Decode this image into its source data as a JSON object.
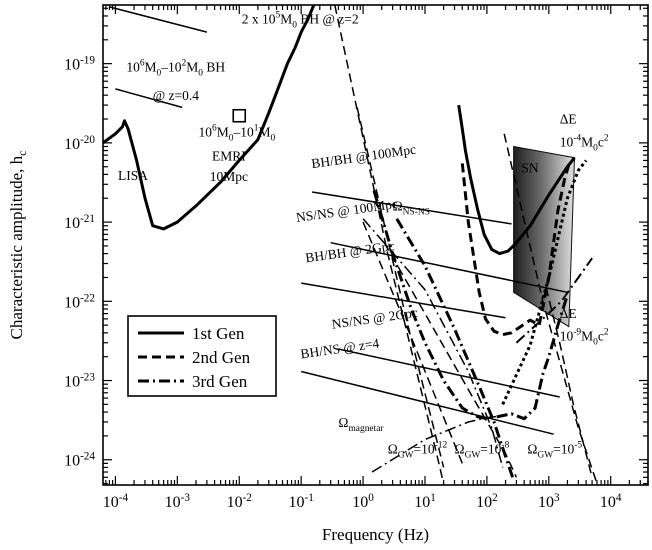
{
  "chart_data": {
    "type": "line",
    "xlabel": "Frequency (Hz)",
    "ylabel": "Characteristic amplitude, h",
    "ylabel_sub": "c",
    "x_scale": "log",
    "y_scale": "log",
    "xlim": [
      6.3e-05,
      40000.0
    ],
    "ylim": [
      4.8e-25,
      5.5e-19
    ],
    "x_ticks": [
      {
        "v": 0.0001,
        "base": "10",
        "exp": "-4"
      },
      {
        "v": 0.001,
        "base": "10",
        "exp": "-3"
      },
      {
        "v": 0.01,
        "base": "10",
        "exp": "-2"
      },
      {
        "v": 0.1,
        "base": "10",
        "exp": "-1"
      },
      {
        "v": 1,
        "base": "10",
        "exp": "0"
      },
      {
        "v": 10,
        "base": "10",
        "exp": "1"
      },
      {
        "v": 100,
        "base": "10",
        "exp": "2"
      },
      {
        "v": 1000,
        "base": "10",
        "exp": "3"
      },
      {
        "v": 10000,
        "base": "10",
        "exp": "4"
      }
    ],
    "y_ticks": [
      {
        "v": 1e-19,
        "base": "10",
        "exp": "-19"
      },
      {
        "v": 1e-20,
        "base": "10",
        "exp": "-20"
      },
      {
        "v": 1e-21,
        "base": "10",
        "exp": "-21"
      },
      {
        "v": 1e-22,
        "base": "10",
        "exp": "-22"
      },
      {
        "v": 1e-23,
        "base": "10",
        "exp": "-23"
      },
      {
        "v": 1e-24,
        "base": "10",
        "exp": "-24"
      }
    ],
    "legend": {
      "placement": "lower-left",
      "entries": [
        {
          "label": "1st Gen",
          "style": "solid"
        },
        {
          "label": "2nd Gen",
          "style": "dashed"
        },
        {
          "label": "3rd Gen",
          "style": "dashdot"
        }
      ]
    },
    "series": [
      {
        "key": "lisa",
        "style": "solid",
        "width": 3,
        "points": [
          [
            6.3e-05,
            1e-20
          ],
          [
            0.0001,
            1.3e-20
          ],
          [
            0.00013,
            1.6e-20
          ],
          [
            0.00014,
            1.9e-20
          ],
          [
            0.00016,
            1.5e-20
          ],
          [
            0.00022,
            6e-21
          ],
          [
            0.0003,
            2e-21
          ],
          [
            0.0004,
            9e-22
          ],
          [
            0.0006,
            8.2e-22
          ],
          [
            0.001,
            1e-21
          ],
          [
            0.002,
            1.6e-21
          ],
          [
            0.005,
            3.2e-21
          ],
          [
            0.01,
            6e-21
          ],
          [
            0.02,
            1.1e-20
          ],
          [
            0.03,
            2.4e-20
          ],
          [
            0.045,
            5.5e-20
          ],
          [
            0.06,
            1e-19
          ],
          [
            0.08,
            1.6e-19
          ],
          [
            0.1,
            2.5e-19
          ],
          [
            0.13,
            3.7e-19
          ],
          [
            0.16,
            5.5e-19
          ]
        ]
      },
      {
        "key": "ligo1",
        "style": "solid",
        "width": 3,
        "points": [
          [
            35,
            3e-20
          ],
          [
            40,
            1.5e-20
          ],
          [
            45,
            8e-21
          ],
          [
            55,
            3.5e-21
          ],
          [
            70,
            1.5e-21
          ],
          [
            90,
            7e-22
          ],
          [
            120,
            4.5e-22
          ],
          [
            160,
            4e-22
          ],
          [
            220,
            4.3e-22
          ],
          [
            300,
            5.5e-22
          ],
          [
            500,
            9e-22
          ],
          [
            1000,
            2.2e-21
          ],
          [
            2000,
            5e-21
          ],
          [
            2600,
            6.5e-21
          ]
        ]
      },
      {
        "key": "ligo2",
        "style": "dashed",
        "width": 3,
        "points": [
          [
            40,
            5.5e-21
          ],
          [
            50,
            1e-21
          ],
          [
            60,
            4e-22
          ],
          [
            75,
            1.3e-22
          ],
          [
            95,
            6e-23
          ],
          [
            130,
            4.2e-23
          ],
          [
            180,
            3.8e-23
          ],
          [
            250,
            4e-23
          ],
          [
            350,
            4.8e-23
          ],
          [
            500,
            5.8e-23
          ],
          [
            700,
            5e-23
          ],
          [
            1000,
            2e-22
          ],
          [
            1400,
            1.4e-21
          ],
          [
            1800,
            3.5e-21
          ],
          [
            2200,
            6e-21
          ]
        ]
      },
      {
        "key": "ligo3",
        "style": "dashdot",
        "width": 3,
        "points": [
          [
            1.5,
            2.5e-21
          ],
          [
            3,
            4e-22
          ],
          [
            6,
            8e-23
          ],
          [
            10,
            3e-23
          ],
          [
            20,
            1e-23
          ],
          [
            40,
            4.5e-24
          ],
          [
            70,
            3.5e-24
          ],
          [
            100,
            3.3e-24
          ],
          [
            150,
            3.5e-24
          ],
          [
            250,
            3.8e-24
          ],
          [
            400,
            3.3e-24
          ],
          [
            600,
            4.5e-24
          ],
          [
            800,
            1.2e-23
          ],
          [
            1000,
            2e-23
          ],
          [
            1400,
            5e-23
          ],
          [
            2000,
            1.2e-22
          ]
        ]
      },
      {
        "key": "smbh_z2",
        "style": "solid",
        "width": 1.5,
        "points": [
          [
            8e-05,
            5.2e-19
          ],
          [
            0.003,
            2.5e-19
          ]
        ]
      },
      {
        "key": "smbh_z04",
        "style": "solid",
        "width": 1.5,
        "points": [
          [
            0.0001,
            4.8e-20
          ],
          [
            0.0012,
            2.8e-20
          ]
        ]
      },
      {
        "key": "bhbh_100mpc",
        "style": "solid",
        "width": 1.5,
        "points": [
          [
            0.15,
            2.4e-21
          ],
          [
            250,
            9.5e-22
          ]
        ]
      },
      {
        "key": "nsns_100mpc",
        "style": "solid",
        "width": 1.5,
        "points": [
          [
            0.3,
            5.5e-22
          ],
          [
            2000,
            1.3e-22
          ]
        ]
      },
      {
        "key": "bhbh_2gpc",
        "style": "solid",
        "width": 1.5,
        "points": [
          [
            0.1,
            1.7e-22
          ],
          [
            200,
            6.2e-23
          ]
        ]
      },
      {
        "key": "nsns_2gpc",
        "style": "solid",
        "width": 1.5,
        "points": [
          [
            0.4,
            2.5e-23
          ],
          [
            1500,
            6.2e-24
          ]
        ]
      },
      {
        "key": "bhns_z4",
        "style": "solid",
        "width": 1.5,
        "points": [
          [
            0.1,
            1.3e-23
          ],
          [
            1200,
            2.1e-24
          ]
        ]
      },
      {
        "key": "omega_nsns",
        "style": "dashdot",
        "width": 3,
        "points": [
          [
            3.5,
            1.1e-21
          ],
          [
            10,
            2.8e-22
          ],
          [
            30,
            4.5e-23
          ],
          [
            80,
            7.5e-24
          ],
          [
            130,
            3e-24
          ],
          [
            260,
            6e-25
          ]
        ]
      },
      {
        "key": "omega_magnetar",
        "style": "dashdot",
        "width": 1.5,
        "points": [
          [
            1,
            1.1e-21
          ],
          [
            10,
            1.4e-22
          ],
          [
            50,
            1.3e-23
          ],
          [
            120,
            2.5e-24
          ],
          [
            180,
            8e-25
          ]
        ]
      },
      {
        "key": "omega_gw_1e-12",
        "style": "dashdot",
        "width": 1.5,
        "points": [
          [
            1.4,
            7e-25
          ],
          [
            10,
            1.8e-24
          ],
          [
            50,
            3e-24
          ],
          [
            100,
            3.4e-24
          ],
          [
            200,
            3.6e-24
          ]
        ]
      },
      {
        "key": "dash_far_1",
        "style": "dashed",
        "width": 1.5,
        "points": [
          [
            0.35,
            5.5e-19
          ],
          [
            2.5,
            4e-22
          ],
          [
            15,
            1.3e-24
          ],
          [
            20,
            5e-25
          ]
        ]
      },
      {
        "key": "dash_far_2",
        "style": "dashed",
        "width": 1.5,
        "points": [
          [
            0.8,
            2.8e-20
          ],
          [
            5,
            6e-23
          ],
          [
            20,
            8e-25
          ]
        ]
      },
      {
        "key": "dash_far_3",
        "style": "dashed",
        "width": 1.5,
        "points": [
          [
            1.0,
            1e-21
          ],
          [
            6,
            3.5e-23
          ],
          [
            40,
            9e-25
          ]
        ]
      },
      {
        "key": "dash_mid",
        "style": "dashed",
        "width": 1.5,
        "points": [
          [
            2.2,
            5.5e-22
          ],
          [
            10,
            7e-23
          ],
          [
            60,
            6e-24
          ],
          [
            200,
            1.2e-24
          ],
          [
            300,
            6e-25
          ]
        ]
      },
      {
        "key": "dash_right",
        "style": "dashed",
        "width": 1.5,
        "points": [
          [
            190,
            1.3e-20
          ],
          [
            800,
            1e-22
          ],
          [
            3000,
            2.5e-24
          ],
          [
            6000,
            5e-25
          ]
        ]
      },
      {
        "key": "delta_e_1e-4",
        "style": "dotted",
        "width": 3,
        "points": [
          [
            180,
            5e-24
          ],
          [
            500,
            2.8e-23
          ],
          [
            1000,
            2e-22
          ],
          [
            2000,
            2e-21
          ],
          [
            3000,
            4.5e-21
          ],
          [
            4000,
            6e-21
          ]
        ]
      },
      {
        "key": "delta_e_1e-9",
        "style": "dashdot",
        "width": 2,
        "points": [
          [
            300,
            3e-23
          ],
          [
            800,
            6e-23
          ],
          [
            1600,
            1e-22
          ],
          [
            3000,
            2e-22
          ],
          [
            5000,
            3.5e-22
          ]
        ]
      },
      {
        "key": "delta_e_1e-9_dash",
        "style": "dashed",
        "width": 1.5,
        "points": [
          [
            900,
            1.5e-22
          ],
          [
            1500,
            3e-23
          ],
          [
            2500,
            5e-24
          ],
          [
            5000,
            6e-25
          ]
        ]
      }
    ],
    "regions": [
      {
        "key": "sn",
        "label": "SN",
        "polygon": [
          [
            270,
            9e-21
          ],
          [
            2600,
            6.5e-21
          ],
          [
            2100,
            4.8e-23
          ],
          [
            270,
            1.3e-22
          ]
        ]
      }
    ],
    "markers": [
      {
        "key": "emri_box",
        "shape": "square",
        "x": 0.01,
        "y": 2.2e-20
      }
    ],
    "annotations": [
      {
        "key": "lbl_smbh_z2",
        "parts": [
          {
            "t": "2 x 10"
          },
          {
            "t": "5",
            "sup": true
          },
          {
            "t": "M"
          },
          {
            "t": "0",
            "sub": true
          },
          {
            "t": " BH @ z=2"
          }
        ],
        "x": 0.011,
        "y": 3.2e-19,
        "anchor": "start"
      },
      {
        "key": "lbl_smbh_range",
        "parts": [
          {
            "t": "10"
          },
          {
            "t": "6",
            "sup": true
          },
          {
            "t": "M"
          },
          {
            "t": "0",
            "sub": true
          },
          {
            "t": "–10"
          },
          {
            "t": "2",
            "sup": true
          },
          {
            "t": "M"
          },
          {
            "t": "0",
            "sub": true
          },
          {
            "t": " BH"
          }
        ],
        "x": 0.00015,
        "y": 8e-20,
        "anchor": "start"
      },
      {
        "key": "lbl_smbh_z04",
        "parts": [
          {
            "t": "@ z=0.4"
          }
        ],
        "x": 0.0004,
        "y": 3.5e-20,
        "anchor": "start"
      },
      {
        "key": "lbl_emri_mass",
        "parts": [
          {
            "t": "10"
          },
          {
            "t": "6",
            "sup": true
          },
          {
            "t": "M"
          },
          {
            "t": "0",
            "sub": true
          },
          {
            "t": "–10"
          },
          {
            "t": "1",
            "sup": true
          },
          {
            "t": "M"
          },
          {
            "t": "0",
            "sub": true
          }
        ],
        "x": 0.0022,
        "y": 1.2e-20,
        "anchor": "start"
      },
      {
        "key": "lbl_emri",
        "parts": [
          {
            "t": "EMRI"
          }
        ],
        "x": 0.0068,
        "y": 6e-21,
        "anchor": "middle"
      },
      {
        "key": "lbl_emri_dist",
        "parts": [
          {
            "t": "10Mpc"
          }
        ],
        "x": 0.0068,
        "y": 3.3e-21,
        "anchor": "middle"
      },
      {
        "key": "lbl_lisa",
        "parts": [
          {
            "t": "LISA"
          }
        ],
        "x": 0.00011,
        "y": 3.4e-21,
        "anchor": "start"
      },
      {
        "key": "lbl_bhbh_100",
        "parts": [
          {
            "t": "BH/BH @ 100Mpc"
          }
        ],
        "x": 0.15,
        "y": 4.8e-21,
        "anchor": "start",
        "rotate": -8
      },
      {
        "key": "lbl_nsns_100",
        "parts": [
          {
            "t": "NS/NS @ 100Mpc"
          }
        ],
        "x": 0.085,
        "y": 1e-21,
        "anchor": "start",
        "rotate": -8
      },
      {
        "key": "lbl_omega_nsns",
        "parts": [
          {
            "t": "Ω"
          },
          {
            "t": "NS-NS",
            "sub": true
          }
        ],
        "x": 3.0,
        "y": 1.4e-21,
        "anchor": "start"
      },
      {
        "key": "lbl_bhbh_2g",
        "parts": [
          {
            "t": "BH/BH @ 2Gpc"
          }
        ],
        "x": 0.12,
        "y": 3.1e-22,
        "anchor": "start",
        "rotate": -8
      },
      {
        "key": "lbl_nsns_2g",
        "parts": [
          {
            "t": "NS/NS @ 2Gpc"
          }
        ],
        "x": 0.32,
        "y": 4.5e-23,
        "anchor": "start",
        "rotate": -8
      },
      {
        "key": "lbl_bhns_z4",
        "parts": [
          {
            "t": "BH/NS @ z=4"
          }
        ],
        "x": 0.1,
        "y": 1.9e-23,
        "anchor": "start",
        "rotate": -8
      },
      {
        "key": "lbl_omega_mag",
        "parts": [
          {
            "t": "Ω"
          },
          {
            "t": "magnetar",
            "sub": true
          }
        ],
        "x": 0.4,
        "y": 2.6e-24,
        "anchor": "start"
      },
      {
        "key": "lbl_omega_12",
        "parts": [
          {
            "t": "Ω"
          },
          {
            "t": "GW",
            "sub": true
          },
          {
            "t": "=10"
          },
          {
            "t": "-12",
            "sup": true
          }
        ],
        "x": 2.5,
        "y": 1.2e-24,
        "anchor": "start"
      },
      {
        "key": "lbl_omega_8",
        "parts": [
          {
            "t": "Ω"
          },
          {
            "t": "GW",
            "sub": true
          },
          {
            "t": "=10"
          },
          {
            "t": "-8",
            "sup": true
          }
        ],
        "x": 30,
        "y": 1.2e-24,
        "anchor": "start"
      },
      {
        "key": "lbl_omega_5",
        "parts": [
          {
            "t": "Ω"
          },
          {
            "t": "GW",
            "sub": true
          },
          {
            "t": "=10"
          },
          {
            "t": "-5",
            "sup": true
          }
        ],
        "x": 450,
        "y": 1.2e-24,
        "anchor": "start"
      },
      {
        "key": "lbl_sn",
        "parts": [
          {
            "t": "SN"
          }
        ],
        "x": 360,
        "y": 4.2e-21,
        "anchor": "start"
      },
      {
        "key": "lbl_de4_top",
        "parts": [
          {
            "t": "ΔE"
          }
        ],
        "x": 1500,
        "y": 1.75e-20,
        "anchor": "start"
      },
      {
        "key": "lbl_de4_bot",
        "parts": [
          {
            "t": "10"
          },
          {
            "t": "-4",
            "sup": true
          },
          {
            "t": "M"
          },
          {
            "t": "0",
            "sub": true
          },
          {
            "t": "c"
          },
          {
            "t": "2",
            "sup": true
          }
        ],
        "x": 1500,
        "y": 9e-21,
        "anchor": "start"
      },
      {
        "key": "lbl_de9_top",
        "parts": [
          {
            "t": "ΔE"
          }
        ],
        "x": 1500,
        "y": 6.2e-23,
        "anchor": "start"
      },
      {
        "key": "lbl_de9_bot",
        "parts": [
          {
            "t": "10"
          },
          {
            "t": "-9",
            "sup": true
          },
          {
            "t": "M"
          },
          {
            "t": "0",
            "sub": true
          },
          {
            "t": "c"
          },
          {
            "t": "2",
            "sup": true
          }
        ],
        "x": 1500,
        "y": 3.2e-23,
        "anchor": "start"
      }
    ]
  }
}
